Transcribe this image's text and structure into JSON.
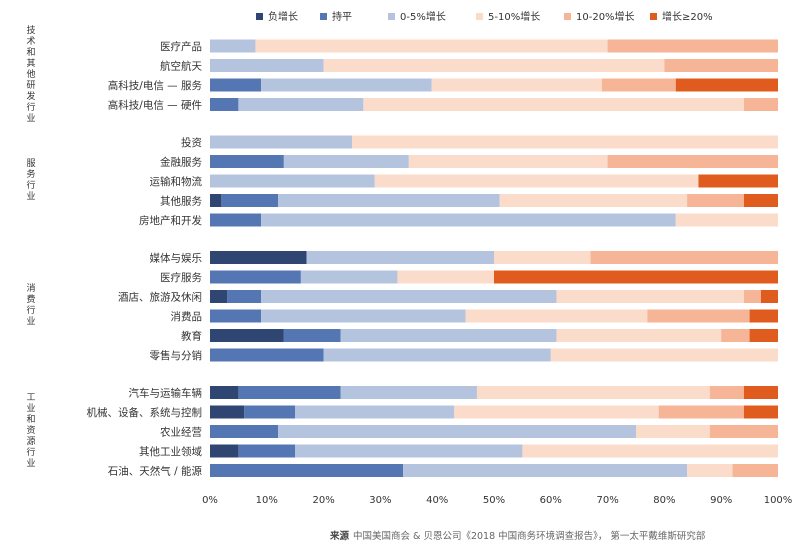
{
  "chart_data": {
    "type": "bar",
    "orientation": "horizontal",
    "stacked": true,
    "percent": true,
    "legend": [
      {
        "name": "负增长",
        "color": "#2f4672"
      },
      {
        "name": "持平",
        "color": "#5477b4"
      },
      {
        "name": "0-5%增长",
        "color": "#b4c4df"
      },
      {
        "name": "5-10%增长",
        "color": "#fbdccb"
      },
      {
        "name": "10-20%增长",
        "color": "#f6b596"
      },
      {
        "name": "增长≥20%",
        "color": "#e05c1e"
      }
    ],
    "groups": [
      {
        "label": "技术和其他研发行业",
        "rows": [
          {
            "name": "医疗产品",
            "values": [
              0,
              0,
              8,
              62,
              30,
              0
            ]
          },
          {
            "name": "航空航天",
            "values": [
              0,
              0,
              20,
              60,
              20,
              0
            ]
          },
          {
            "name": "高科技/电信 — 服务",
            "values": [
              0,
              9,
              30,
              30,
              13,
              18
            ]
          },
          {
            "name": "高科技/电信 — 硬件",
            "values": [
              0,
              5,
              22,
              67,
              6,
              0
            ]
          }
        ]
      },
      {
        "label": "服务行业",
        "rows": [
          {
            "name": "投资",
            "values": [
              0,
              0,
              25,
              75,
              0,
              0
            ]
          },
          {
            "name": "金融服务",
            "values": [
              0,
              13,
              22,
              35,
              30,
              0
            ]
          },
          {
            "name": "运输和物流",
            "values": [
              0,
              0,
              29,
              57,
              0,
              14
            ]
          },
          {
            "name": "其他服务",
            "values": [
              2,
              10,
              39,
              33,
              10,
              6
            ]
          },
          {
            "name": "房地产和开发",
            "values": [
              0,
              9,
              73,
              18,
              0,
              0
            ]
          }
        ]
      },
      {
        "label": "消费行业",
        "rows": [
          {
            "name": "媒体与娱乐",
            "values": [
              17,
              0,
              33,
              17,
              33,
              0
            ]
          },
          {
            "name": "医疗服务",
            "values": [
              0,
              16,
              17,
              17,
              0,
              50
            ]
          },
          {
            "name": "酒店、旅游及休闲",
            "values": [
              3,
              6,
              52,
              33,
              3,
              3
            ]
          },
          {
            "name": "消费品",
            "values": [
              0,
              9,
              36,
              32,
              18,
              5
            ]
          },
          {
            "name": "教育",
            "values": [
              13,
              10,
              38,
              29,
              5,
              5
            ]
          },
          {
            "name": "零售与分销",
            "values": [
              0,
              20,
              40,
              40,
              0,
              0
            ]
          }
        ]
      },
      {
        "label": "工业和资源行业",
        "rows": [
          {
            "name": "汽车与运输车辆",
            "values": [
              5,
              18,
              24,
              41,
              6,
              6
            ]
          },
          {
            "name": "机械、设备、系统与控制",
            "values": [
              6,
              9,
              28,
              36,
              15,
              6
            ]
          },
          {
            "name": "农业经营",
            "values": [
              0,
              12,
              63,
              13,
              12,
              0
            ]
          },
          {
            "name": "其他工业领域",
            "values": [
              5,
              10,
              40,
              45,
              0,
              0
            ]
          },
          {
            "name": "石油、天然气 / 能源",
            "values": [
              0,
              34,
              50,
              8,
              8,
              0
            ]
          }
        ]
      }
    ],
    "x_ticks": [
      "0%",
      "10%",
      "20%",
      "30%",
      "40%",
      "50%",
      "60%",
      "70%",
      "80%",
      "90%",
      "100%"
    ],
    "xlim": [
      0,
      100
    ],
    "grid": false,
    "legend_position": "top"
  },
  "source": {
    "label": "来源",
    "text": "中国美国商会 & 贝恩公司《2018 中国商务环境调查报告》， 第一太平戴维斯研究部"
  }
}
